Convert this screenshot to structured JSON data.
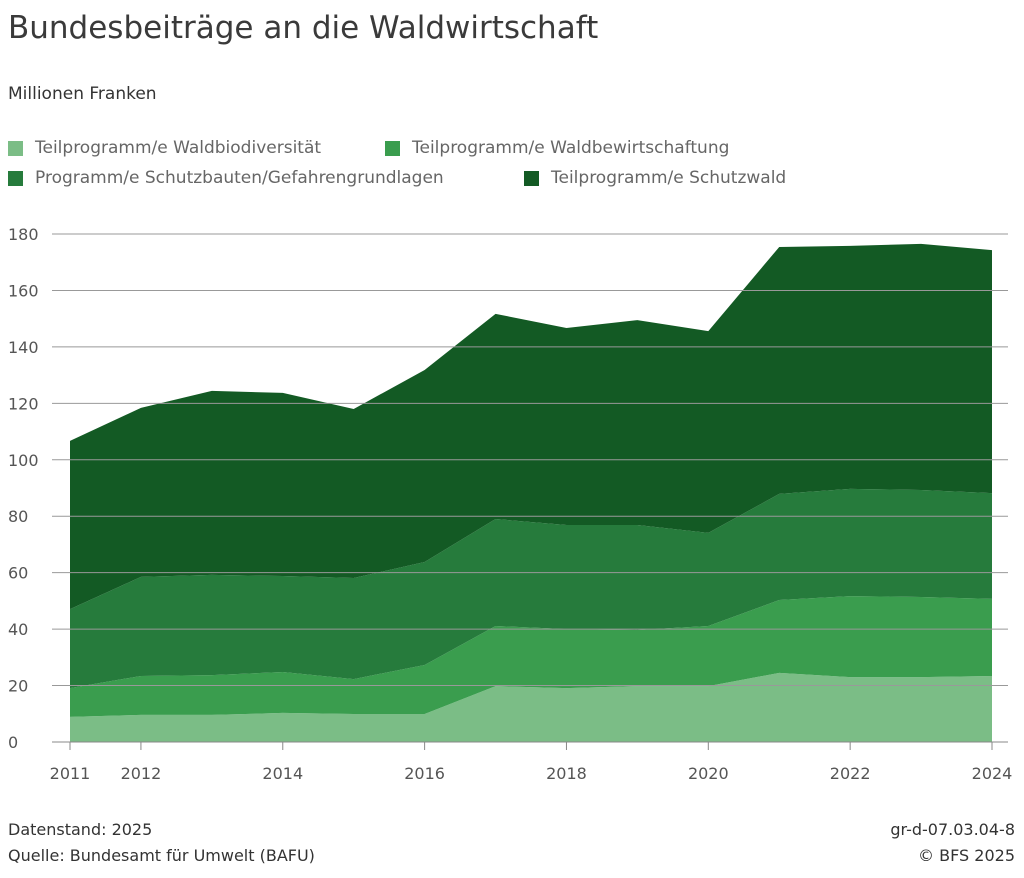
{
  "header": {
    "title": "Bundesbeiträge an die Waldwirtschaft",
    "subtitle": "Millionen Franken"
  },
  "footer": {
    "data_status": "Datenstand: 2025",
    "source": "Quelle: Bundesamt für Umwelt (BAFU)",
    "code": "gr-d-07.03.04-8",
    "copyright": "© BFS 2025"
  },
  "chart_data": {
    "type": "area",
    "stacked": true,
    "title": "Bundesbeiträge an die Waldwirtschaft",
    "ylabel": "Millionen Franken",
    "xlabel": "",
    "ylim": [
      0,
      180
    ],
    "yticks": [
      0,
      20,
      40,
      60,
      80,
      100,
      120,
      140,
      160,
      180
    ],
    "xticks": [
      2011,
      2012,
      2014,
      2016,
      2018,
      2020,
      2022,
      2024
    ],
    "grid": true,
    "legend_position": "top",
    "x": [
      2011,
      2012,
      2013,
      2014,
      2015,
      2016,
      2017,
      2018,
      2019,
      2020,
      2021,
      2022,
      2023,
      2024
    ],
    "series": [
      {
        "name": "Teilprogramm/e Waldbiodiversität",
        "color": "#7bbd86",
        "values": [
          8.9,
          9.6,
          9.6,
          10.3,
          9.9,
          9.9,
          19.8,
          19.1,
          19.8,
          19.8,
          24.5,
          23.0,
          23.0,
          23.4
        ]
      },
      {
        "name": "Teilprogramm/e Waldbewirtschaftung",
        "color": "#3a9d4e",
        "values": [
          10.2,
          13.8,
          14.1,
          14.5,
          12.4,
          17.4,
          21.3,
          20.9,
          19.9,
          21.3,
          25.8,
          28.7,
          28.4,
          27.3
        ]
      },
      {
        "name": "Programm/e Schutzbauten/Gefahrengrundlagen",
        "color": "#267b3c",
        "values": [
          28.0,
          35.1,
          35.5,
          34.0,
          35.8,
          36.5,
          37.9,
          36.9,
          37.2,
          33.0,
          37.6,
          38.0,
          37.9,
          37.5
        ]
      },
      {
        "name": "Teilprogramm/e Schutzwald",
        "color": "#135a24",
        "values": [
          59.6,
          59.9,
          65.2,
          64.9,
          59.9,
          68.0,
          72.7,
          69.8,
          72.6,
          71.5,
          87.5,
          86.1,
          87.2,
          86.1
        ]
      }
    ]
  }
}
